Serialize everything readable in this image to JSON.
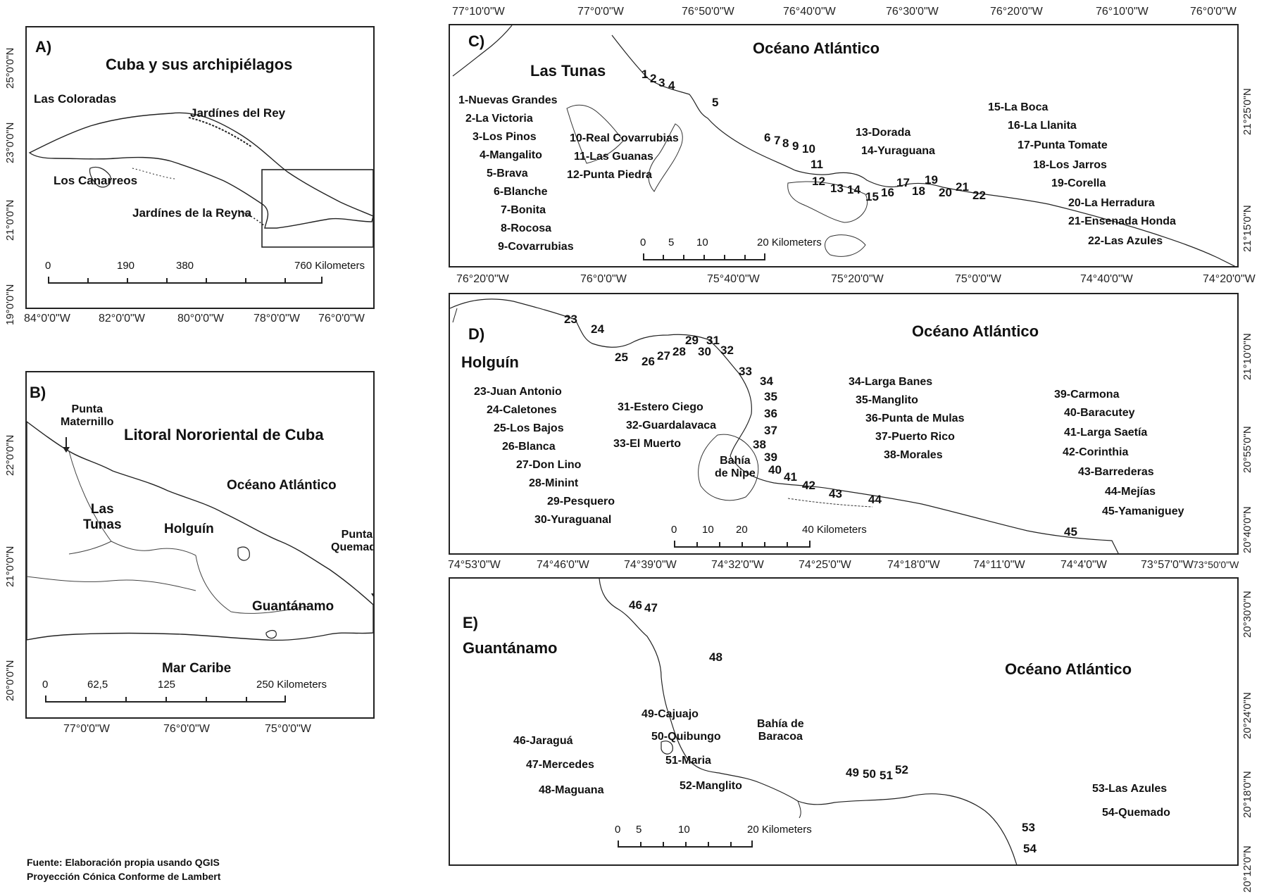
{
  "panel_a": {
    "letter": "A)",
    "title": "Cuba y sus archipiélagos",
    "labels": [
      "Las Coloradas",
      "Jardínes del Rey",
      "Los Canarreos",
      "Jardínes de la Reyna"
    ],
    "scale": {
      "ticks": [
        "0",
        "190",
        "380",
        "760 Kilometers"
      ]
    },
    "x_coords": [
      "84°0'0\"W",
      "82°0'0\"W",
      "80°0'0\"W",
      "78°0'0\"W",
      "76°0'0\"W"
    ],
    "y_coords": [
      "25°0'0\"N",
      "23°0'0\"N",
      "21°0'0\"N",
      "19°0'0\"N"
    ]
  },
  "panel_b": {
    "letter": "B)",
    "title": "Litoral Nororiental de Cuba",
    "ocean": "Océano Atlántico",
    "sea": "Mar Caribe",
    "punta_maternillo": [
      "Punta",
      "Maternillo"
    ],
    "punta_quemado": [
      "Punta",
      "Quemado"
    ],
    "provinces": [
      "Las",
      "Tunas",
      "Holguín",
      "Guantánamo"
    ],
    "scale": {
      "ticks": [
        "0",
        "62,5",
        "125",
        "250 Kilometers"
      ]
    },
    "x_coords": [
      "77°0'0\"W",
      "76°0'0\"W",
      "75°0'0\"W"
    ],
    "y_coords": [
      "22°0'0\"N",
      "21°0'0\"N",
      "20°0'0\"N"
    ]
  },
  "panel_c": {
    "letter": "C)",
    "province": "Las Tunas",
    "ocean": "Océano Atlántico",
    "beaches": [
      "1-Nuevas Grandes",
      "2-La Victoria",
      "3-Los Pinos",
      "4-Mangalito",
      "5-Brava",
      "6-Blanche",
      "7-Bonita",
      "8-Rocosa",
      "9-Covarrubias",
      "10-Real Covarrubias",
      "11-Las Guanas",
      "12-Punta Piedra",
      "13-Dorada",
      "14-Yuraguana",
      "15-La Boca",
      "16-La Llanita",
      "17-Punta Tomate",
      "18-Los Jarros",
      "19-Corella",
      "20-La Herradura",
      "21-Ensenada Honda",
      "22-Las Azules"
    ],
    "numbers": [
      "1",
      "2",
      "3",
      "4",
      "5",
      "6",
      "7",
      "8",
      "9",
      "10",
      "11",
      "12",
      "13",
      "14",
      "15",
      "16",
      "17",
      "18",
      "19",
      "20",
      "21",
      "22"
    ],
    "scale": {
      "ticks": [
        "0",
        "5",
        "10",
        "20 Kilometers"
      ]
    },
    "x_coords": [
      "77°10'0\"W",
      "77°0'0\"W",
      "76°50'0\"W",
      "76°40'0\"W",
      "76°30'0\"W",
      "76°20'0\"W",
      "76°10'0\"W",
      "76°0'0\"W"
    ],
    "y_coords": [
      "21°25'0\"N",
      "21°15'0\"N"
    ]
  },
  "panel_d": {
    "letter": "D)",
    "province": "Holguín",
    "ocean": "Océano Atlántico",
    "bay": [
      "Bahía",
      "de Nipe"
    ],
    "beaches": [
      "23-Juan Antonio",
      "24-Caletones",
      "25-Los Bajos",
      "26-Blanca",
      "27-Don Lino",
      "28-Minint",
      "29-Pesquero",
      "30-Yuraguanal",
      "31-Estero Ciego",
      "32-Guardalavaca",
      "33-El Muerto",
      "34-Larga Banes",
      "35-Manglito",
      "36-Punta de Mulas",
      "37-Puerto Rico",
      "38-Morales",
      "39-Carmona",
      "40-Baracutey",
      "41-Larga Saetía",
      "42-Corinthia",
      "43-Barrederas",
      "44-Mejías",
      "45-Yamaniguey"
    ],
    "numbers": [
      "23",
      "24",
      "25",
      "26",
      "27",
      "28",
      "29",
      "30",
      "31",
      "32",
      "33",
      "34",
      "35",
      "36",
      "37",
      "38",
      "39",
      "40",
      "41",
      "42",
      "43",
      "44",
      "45"
    ],
    "scale": {
      "ticks": [
        "0",
        "10",
        "20",
        "40 Kilometers"
      ]
    },
    "x_coords_top": [
      "76°20'0\"W",
      "76°0'0\"W",
      "75°40'0\"W",
      "75°20'0\"W",
      "75°0'0\"W",
      "74°40'0\"W",
      "74°20'0\"W"
    ],
    "x_coords_bottom": [
      "74°53'0\"W",
      "74°46'0\"W",
      "74°39'0\"W",
      "74°32'0\"W",
      "74°25'0\"W",
      "74°18'0\"W",
      "74°11'0\"W",
      "74°4'0\"W",
      "73°57'0\"W",
      "73°50'0\"W"
    ],
    "y_coords": [
      "21°10'0\"N",
      "20°55'0\"N",
      "20°40'0\"N"
    ]
  },
  "panel_e": {
    "letter": "E)",
    "province": "Guantánamo",
    "ocean": "Océano Atlántico",
    "bay": [
      "Bahía de",
      "Baracoa"
    ],
    "beaches": [
      "46-Jaraguá",
      "47-Mercedes",
      "48-Maguana",
      "49-Cajuajo",
      "50-Quibungo",
      "51-Maria",
      "52-Manglito",
      "53-Las Azules",
      "54-Quemado"
    ],
    "numbers": [
      "46",
      "47",
      "48",
      "49",
      "50",
      "51",
      "52",
      "53",
      "54"
    ],
    "scale": {
      "ticks": [
        "0",
        "5",
        "10",
        "20 Kilometers"
      ]
    },
    "y_coords": [
      "20°30'0\"N",
      "20°24'0\"N",
      "20°18'0\"N",
      "20°12'0\"N"
    ]
  },
  "footer": [
    "Fuente: Elaboración propia usando QGIS",
    "Proyección Cónica Conforme de Lambert"
  ]
}
